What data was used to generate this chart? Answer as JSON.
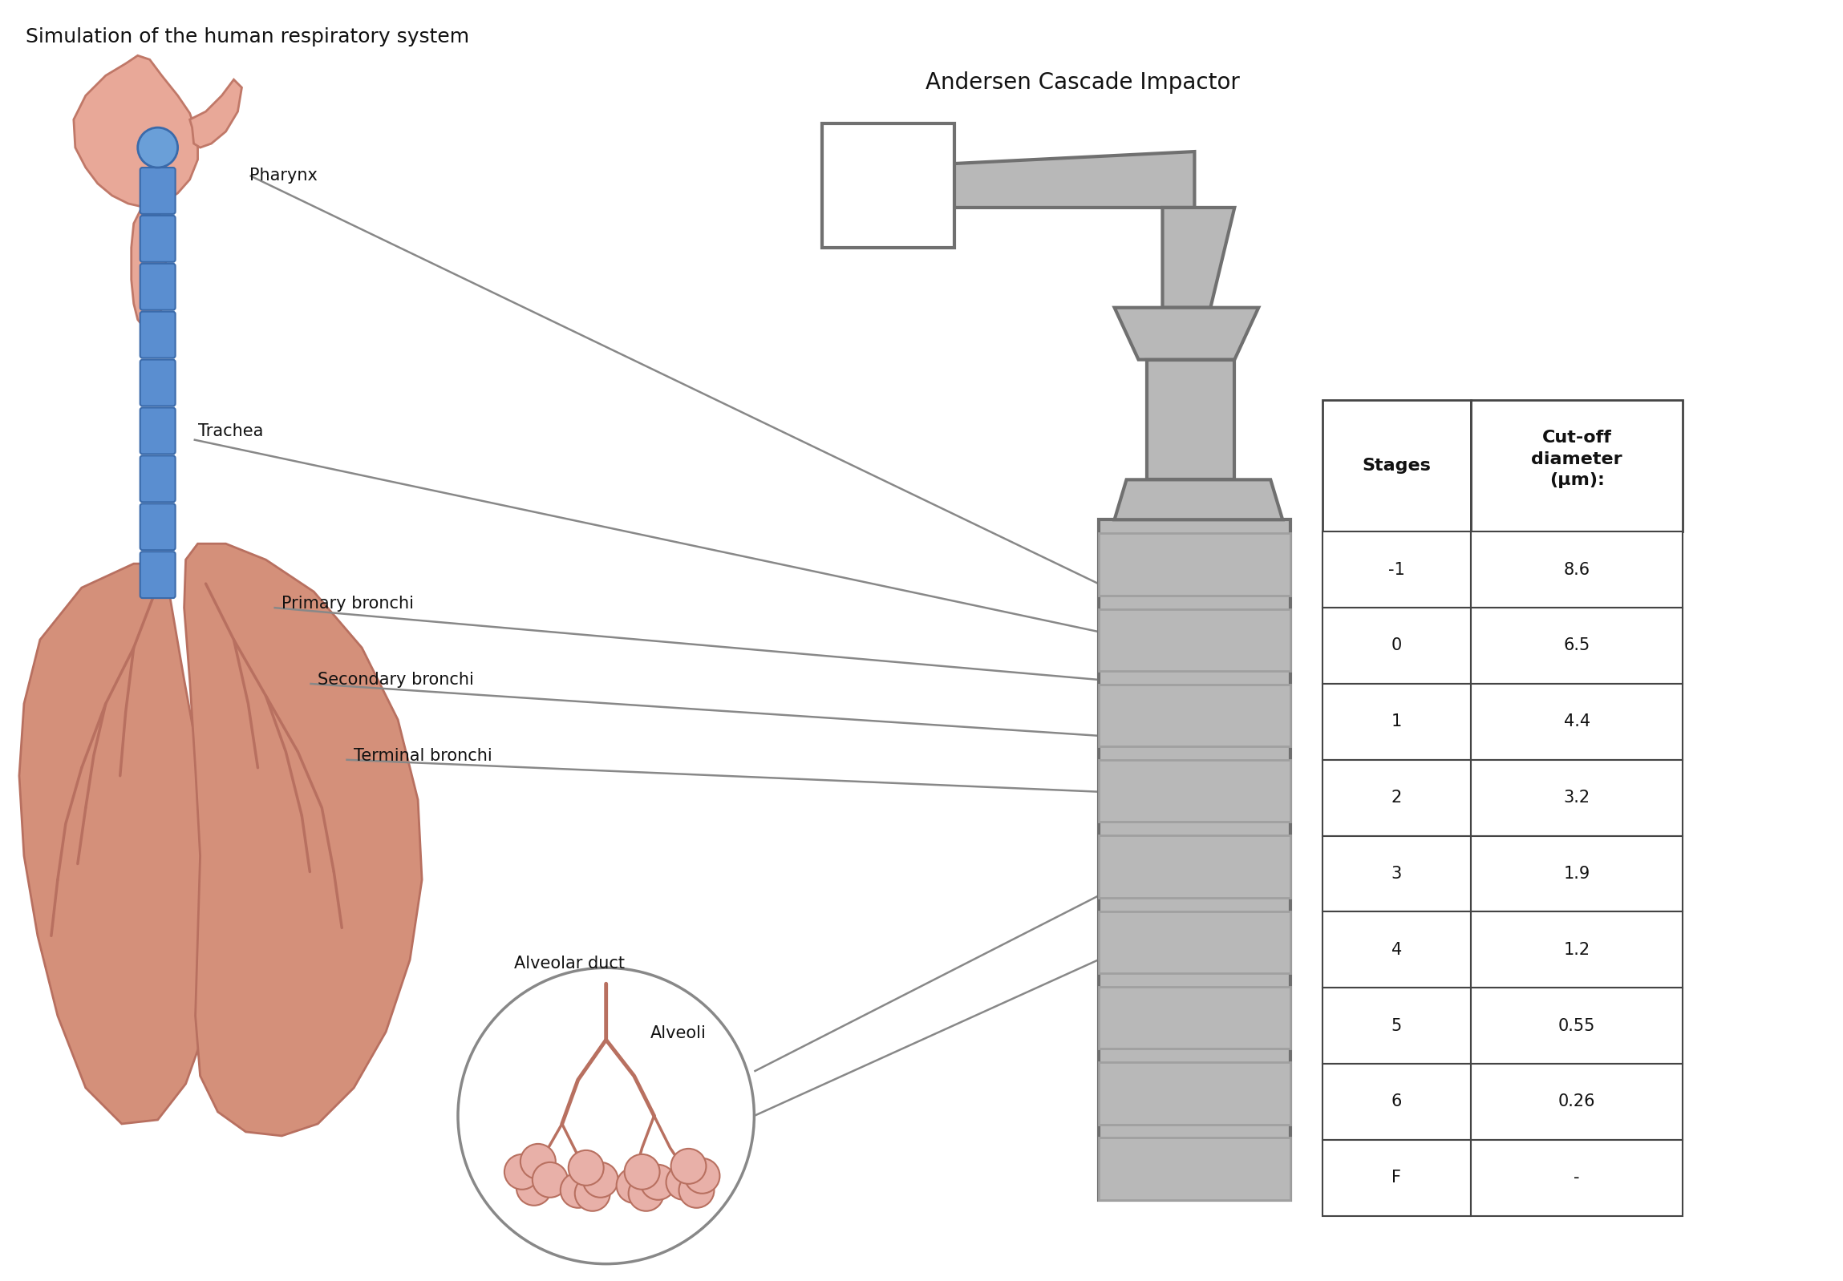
{
  "title": "Simulation of the human respiratory system",
  "device_title": "Andersen Cascade Impactor",
  "background_color": "#ffffff",
  "lung_color": "#d4907a",
  "lung_edge": "#b87060",
  "trachea_color": "#5a8ed0",
  "trachea_edge": "#3a6aaa",
  "pharynx_color": "#e8a898",
  "pharynx_edge": "#c07868",
  "gray_fill": "#b8b8b8",
  "gray_edge": "#707070",
  "gray_mid": "#a0a0a0",
  "table_stages": [
    "-1",
    "0",
    "1",
    "2",
    "3",
    "4",
    "5",
    "6",
    "F"
  ],
  "table_cutoff": [
    "8.6",
    "6.5",
    "4.4",
    "3.2",
    "1.9",
    "1.2",
    "0.55",
    "0.26",
    "-"
  ],
  "alveoli_color": "#e8b0a8",
  "alveoli_edge": "#b87060",
  "line_color": "#888888",
  "text_color": "#111111",
  "title_fontsize": 18,
  "label_fontsize": 15,
  "table_fontsize": 15,
  "device_title_fontsize": 20
}
